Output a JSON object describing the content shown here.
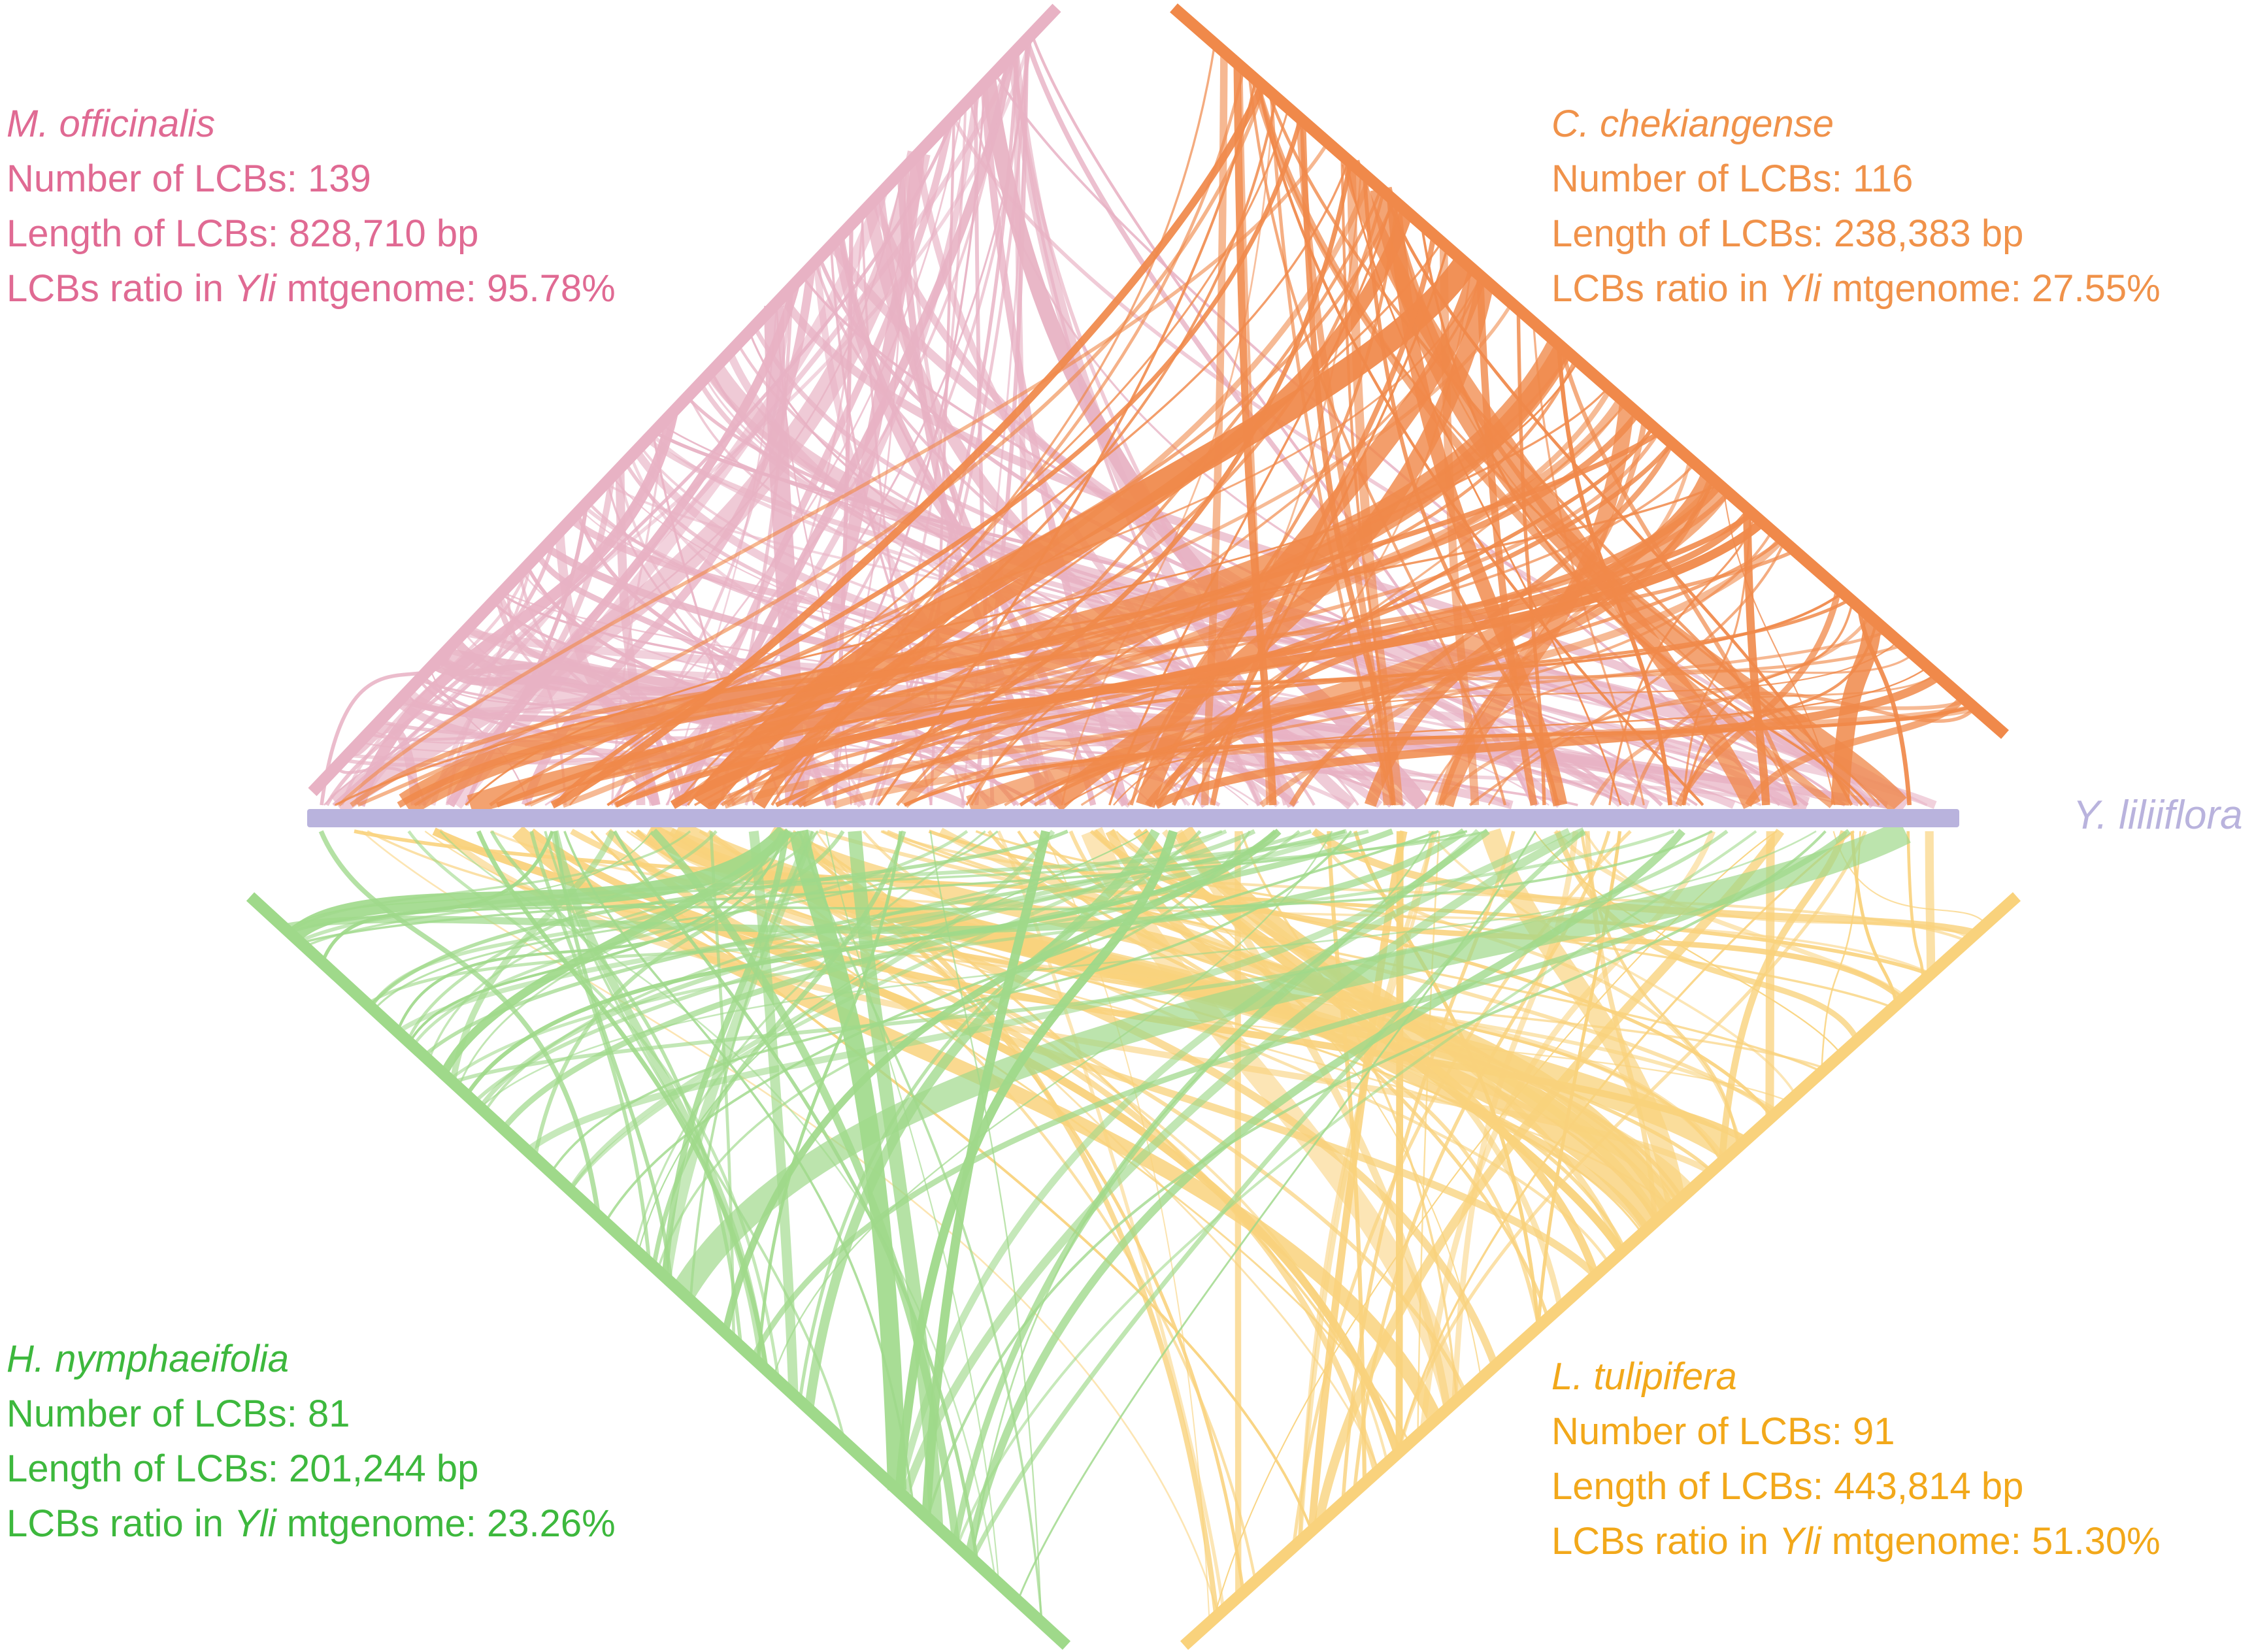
{
  "reference": {
    "name": "Y. liliiflora",
    "abbr": "Yli",
    "color": "#b9b3dd"
  },
  "genomes": [
    {
      "id": "mo",
      "species": "M. officinalis",
      "color": "#e06a93",
      "ribbon_color": "#e8b2c4",
      "lcb_count_label": "Number of LCBs: 139",
      "lcb_length_label": "Length of LCBs: 828,710 bp",
      "ratio_prefix": "LCBs ratio in ",
      "ratio_abbr": "Yli",
      "ratio_suffix": " mtgenome: 95.78%",
      "lcb_count": 139,
      "lcb_length_bp": 828710,
      "ratio_percent": 95.78
    },
    {
      "id": "cc",
      "species": "C. chekiangense",
      "color": "#f0924a",
      "ribbon_color": "#f0894a",
      "lcb_count_label": "Number of LCBs: 116",
      "lcb_length_label": "Length of LCBs: 238,383 bp",
      "ratio_prefix": "LCBs ratio in ",
      "ratio_abbr": "Yli",
      "ratio_suffix": " mtgenome: 27.55%",
      "lcb_count": 116,
      "lcb_length_bp": 238383,
      "ratio_percent": 27.55
    },
    {
      "id": "hn",
      "species": "H. nymphaeifolia",
      "color": "#3db83d",
      "ribbon_color": "#9fd98a",
      "lcb_count_label": "Number of LCBs: 81",
      "lcb_length_label": "Length of LCBs: 201,244 bp",
      "ratio_prefix": "LCBs ratio in ",
      "ratio_abbr": "Yli",
      "ratio_suffix": " mtgenome: 23.26%",
      "lcb_count": 81,
      "lcb_length_bp": 201244,
      "ratio_percent": 23.26
    },
    {
      "id": "lt",
      "species": "L. tulipifera",
      "color": "#f2a81a",
      "ribbon_color": "#f9d27c",
      "lcb_count_label": "Number of LCBs: 91",
      "lcb_length_label": "Length of LCBs: 443,814 bp",
      "ratio_prefix": "LCBs ratio in ",
      "ratio_abbr": "Yli",
      "ratio_suffix": " mtgenome: 51.30%",
      "lcb_count": 91,
      "lcb_length_bp": 443814,
      "ratio_percent": 51.3
    }
  ]
}
